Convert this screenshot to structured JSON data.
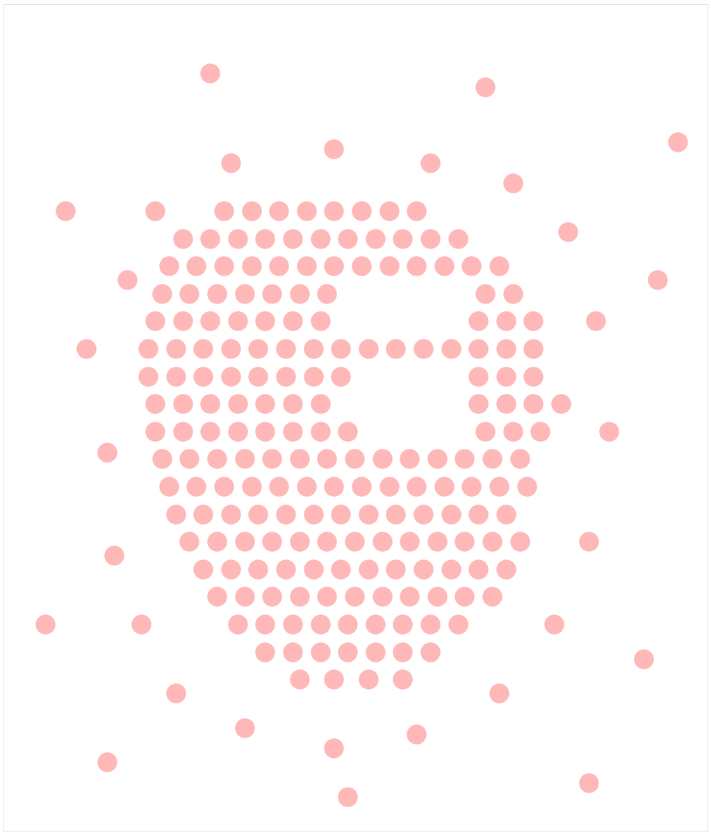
{
  "chart_data": {
    "type": "scatter",
    "color": "#ff0000",
    "marker": "o",
    "tick_labels": false,
    "xlim": [
      0,
      1023
    ],
    "ylim": [
      1200,
      0
    ],
    "x": [
      320,
      360,
      400,
      440,
      480,
      520,
      560,
      600,
      260,
      300,
      340,
      380,
      420,
      460,
      500,
      540,
      580,
      620,
      660,
      240,
      280,
      320,
      360,
      400,
      440,
      480,
      520,
      560,
      600,
      640,
      680,
      720,
      230,
      270,
      310,
      350,
      390,
      430,
      470,
      700,
      740,
      220,
      260,
      300,
      340,
      380,
      420,
      460,
      690,
      730,
      770,
      210,
      250,
      290,
      330,
      370,
      410,
      450,
      490,
      530,
      570,
      610,
      650,
      690,
      730,
      770,
      210,
      250,
      290,
      330,
      370,
      410,
      450,
      490,
      690,
      730,
      770,
      220,
      260,
      300,
      340,
      380,
      420,
      460,
      690,
      730,
      770,
      810,
      220,
      260,
      300,
      340,
      380,
      420,
      460,
      500,
      700,
      740,
      780,
      230,
      270,
      310,
      350,
      390,
      430,
      470,
      510,
      550,
      590,
      630,
      670,
      710,
      750,
      240,
      280,
      320,
      360,
      400,
      440,
      480,
      520,
      560,
      600,
      640,
      680,
      720,
      760,
      250,
      290,
      330,
      370,
      410,
      450,
      490,
      530,
      570,
      610,
      650,
      690,
      730,
      270,
      310,
      350,
      390,
      430,
      470,
      510,
      550,
      590,
      630,
      670,
      710,
      750,
      290,
      330,
      370,
      410,
      450,
      490,
      530,
      570,
      610,
      650,
      690,
      730,
      310,
      350,
      390,
      430,
      470,
      510,
      550,
      590,
      630,
      670,
      710,
      340,
      380,
      420,
      460,
      500,
      540,
      580,
      620,
      660,
      380,
      420,
      460,
      500,
      540,
      580,
      620,
      430,
      480,
      530,
      580,
      120,
      150,
      180,
      160,
      200,
      250,
      350,
      480,
      600,
      720,
      800,
      850,
      880,
      860,
      820,
      740,
      620,
      480,
      330,
      220,
      90,
      60,
      930,
      950,
      700,
      300,
      500,
      150,
      850,
      980
    ],
    "values": [
      300,
      300,
      300,
      300,
      300,
      300,
      300,
      300,
      340,
      340,
      340,
      340,
      340,
      340,
      340,
      340,
      340,
      340,
      340,
      380,
      380,
      380,
      380,
      380,
      380,
      380,
      380,
      380,
      380,
      380,
      380,
      380,
      420,
      420,
      420,
      420,
      420,
      420,
      420,
      420,
      420,
      460,
      460,
      460,
      460,
      460,
      460,
      460,
      460,
      460,
      460,
      500,
      500,
      500,
      500,
      500,
      500,
      500,
      500,
      500,
      500,
      500,
      500,
      500,
      500,
      500,
      540,
      540,
      540,
      540,
      540,
      540,
      540,
      540,
      540,
      540,
      540,
      580,
      580,
      580,
      580,
      580,
      580,
      580,
      580,
      580,
      580,
      580,
      620,
      620,
      620,
      620,
      620,
      620,
      620,
      620,
      620,
      620,
      620,
      660,
      660,
      660,
      660,
      660,
      660,
      660,
      660,
      660,
      660,
      660,
      660,
      660,
      660,
      700,
      700,
      700,
      700,
      700,
      700,
      700,
      700,
      700,
      700,
      700,
      700,
      700,
      700,
      740,
      740,
      740,
      740,
      740,
      740,
      740,
      740,
      740,
      740,
      740,
      740,
      740,
      780,
      780,
      780,
      780,
      780,
      780,
      780,
      780,
      780,
      780,
      780,
      780,
      780,
      820,
      820,
      820,
      820,
      820,
      820,
      820,
      820,
      820,
      820,
      820,
      820,
      860,
      860,
      860,
      860,
      860,
      860,
      860,
      860,
      860,
      860,
      860,
      900,
      900,
      900,
      900,
      900,
      900,
      900,
      900,
      900,
      940,
      940,
      940,
      940,
      940,
      940,
      940,
      980,
      980,
      980,
      980,
      500,
      650,
      400,
      800,
      900,
      1000,
      1050,
      1080,
      1060,
      1000,
      900,
      780,
      620,
      460,
      330,
      260,
      230,
      210,
      230,
      300,
      300,
      900,
      950,
      400,
      120,
      100,
      1150,
      1100,
      1130,
      200
    ]
  }
}
